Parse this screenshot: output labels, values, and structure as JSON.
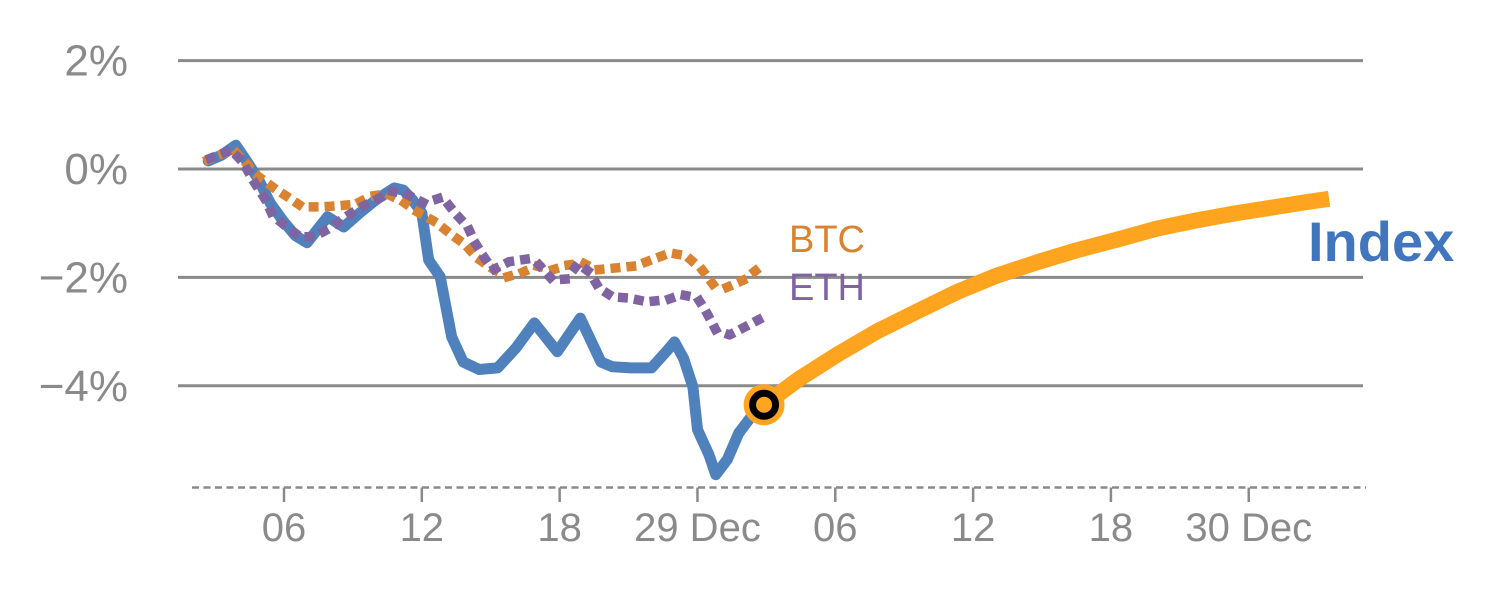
{
  "chart_data": {
    "type": "line",
    "title": "",
    "xlabel": "",
    "ylabel": "",
    "grid": "horizontal-solid",
    "background": "#FFFFFF",
    "axis_color": "#8A8A8A",
    "legend_position": "inline-labels",
    "ylim": [
      -6.2,
      2.6
    ],
    "y_unit": "%",
    "y_ticks": [
      {
        "value": 2,
        "label": "2%"
      },
      {
        "value": 0,
        "label": "0%"
      },
      {
        "value": -2,
        "label": "−2%"
      },
      {
        "value": -4,
        "label": "−4%"
      }
    ],
    "x_axis_style": "dashed",
    "x_ticks": [
      {
        "t": 6,
        "label": "06"
      },
      {
        "t": 12,
        "label": "12"
      },
      {
        "t": 18,
        "label": "18"
      },
      {
        "t": 24,
        "label": "29 Dec"
      },
      {
        "t": 30,
        "label": "06"
      },
      {
        "t": 36,
        "label": "12"
      },
      {
        "t": 42,
        "label": "18"
      },
      {
        "t": 48,
        "label": "30 Dec"
      }
    ],
    "series": [
      {
        "name": "Index (actual)",
        "style": "solid",
        "color": "#4F81BD",
        "width": 11,
        "points": [
          [
            2.7,
            0.15
          ],
          [
            3.3,
            0.26
          ],
          [
            3.9,
            0.44
          ],
          [
            4.4,
            0.13
          ],
          [
            4.9,
            -0.2
          ],
          [
            5.4,
            -0.63
          ],
          [
            6.0,
            -0.98
          ],
          [
            6.5,
            -1.23
          ],
          [
            7.0,
            -1.36
          ],
          [
            7.9,
            -0.88
          ],
          [
            8.6,
            -1.07
          ],
          [
            9.3,
            -0.81
          ],
          [
            10.0,
            -0.57
          ],
          [
            10.8,
            -0.35
          ],
          [
            11.2,
            -0.39
          ],
          [
            11.6,
            -0.57
          ],
          [
            12.0,
            -0.81
          ],
          [
            12.3,
            -1.68
          ],
          [
            12.8,
            -1.99
          ],
          [
            13.3,
            -3.1
          ],
          [
            13.8,
            -3.56
          ],
          [
            14.5,
            -3.7
          ],
          [
            15.3,
            -3.67
          ],
          [
            16.1,
            -3.3
          ],
          [
            16.9,
            -2.84
          ],
          [
            17.9,
            -3.37
          ],
          [
            18.9,
            -2.75
          ],
          [
            19.8,
            -3.56
          ],
          [
            20.3,
            -3.65
          ],
          [
            21.1,
            -3.67
          ],
          [
            22.0,
            -3.67
          ],
          [
            22.6,
            -3.39
          ],
          [
            23.0,
            -3.19
          ],
          [
            23.4,
            -3.5
          ],
          [
            23.8,
            -4.02
          ],
          [
            24.0,
            -4.81
          ],
          [
            24.5,
            -5.27
          ],
          [
            24.8,
            -5.64
          ],
          [
            25.3,
            -5.36
          ],
          [
            25.8,
            -4.87
          ],
          [
            26.3,
            -4.59
          ],
          [
            26.9,
            -4.35
          ]
        ]
      },
      {
        "name": "Index (projected)",
        "style": "solid-thick",
        "color": "#FFA41E",
        "width": 16,
        "points": [
          [
            26.9,
            -4.35
          ],
          [
            28.4,
            -3.88
          ],
          [
            30.1,
            -3.42
          ],
          [
            31.8,
            -3.0
          ],
          [
            33.6,
            -2.62
          ],
          [
            35.3,
            -2.27
          ],
          [
            37.0,
            -1.97
          ],
          [
            38.8,
            -1.72
          ],
          [
            40.5,
            -1.5
          ],
          [
            42.2,
            -1.31
          ],
          [
            44.0,
            -1.1
          ],
          [
            45.7,
            -0.95
          ],
          [
            47.4,
            -0.82
          ],
          [
            49.2,
            -0.7
          ],
          [
            50.5,
            -0.61
          ],
          [
            51.5,
            -0.55
          ]
        ]
      },
      {
        "name": "BTC",
        "style": "dotted",
        "color": "#D9822F",
        "width": 9.5,
        "points": [
          [
            2.7,
            0.17
          ],
          [
            3.2,
            0.26
          ],
          [
            3.8,
            0.35
          ],
          [
            4.3,
            0.13
          ],
          [
            4.8,
            -0.11
          ],
          [
            5.5,
            -0.33
          ],
          [
            6.1,
            -0.5
          ],
          [
            6.8,
            -0.7
          ],
          [
            7.6,
            -0.7
          ],
          [
            8.3,
            -0.68
          ],
          [
            9.1,
            -0.65
          ],
          [
            9.8,
            -0.5
          ],
          [
            10.5,
            -0.46
          ],
          [
            11.2,
            -0.61
          ],
          [
            11.8,
            -0.79
          ],
          [
            12.6,
            -0.98
          ],
          [
            13.2,
            -1.18
          ],
          [
            13.9,
            -1.4
          ],
          [
            14.4,
            -1.64
          ],
          [
            15.0,
            -1.82
          ],
          [
            15.7,
            -1.99
          ],
          [
            16.3,
            -1.92
          ],
          [
            17.0,
            -1.79
          ],
          [
            17.7,
            -1.86
          ],
          [
            18.4,
            -1.77
          ],
          [
            19.0,
            -1.73
          ],
          [
            19.6,
            -1.86
          ],
          [
            20.6,
            -1.82
          ],
          [
            21.3,
            -1.79
          ],
          [
            22.1,
            -1.66
          ],
          [
            22.8,
            -1.55
          ],
          [
            23.5,
            -1.6
          ],
          [
            24.2,
            -1.86
          ],
          [
            24.7,
            -2.14
          ],
          [
            25.3,
            -2.18
          ],
          [
            26.0,
            -2.05
          ],
          [
            26.7,
            -1.82
          ]
        ]
      },
      {
        "name": "ETH",
        "style": "dotted",
        "color": "#8064A2",
        "width": 9.5,
        "points": [
          [
            2.8,
            0.2
          ],
          [
            3.7,
            0.35
          ],
          [
            4.2,
            0.13
          ],
          [
            4.7,
            -0.24
          ],
          [
            5.2,
            -0.57
          ],
          [
            5.5,
            -0.85
          ],
          [
            6.0,
            -1.03
          ],
          [
            6.7,
            -1.25
          ],
          [
            7.3,
            -1.25
          ],
          [
            8.0,
            -1.09
          ],
          [
            8.7,
            -0.88
          ],
          [
            9.3,
            -0.72
          ],
          [
            10.0,
            -0.57
          ],
          [
            10.7,
            -0.41
          ],
          [
            11.4,
            -0.48
          ],
          [
            12.1,
            -0.63
          ],
          [
            12.9,
            -0.52
          ],
          [
            13.4,
            -0.79
          ],
          [
            14.0,
            -1.07
          ],
          [
            14.3,
            -1.35
          ],
          [
            14.7,
            -1.62
          ],
          [
            15.1,
            -1.86
          ],
          [
            15.8,
            -1.71
          ],
          [
            16.6,
            -1.66
          ],
          [
            17.1,
            -1.77
          ],
          [
            17.7,
            -2.05
          ],
          [
            18.3,
            -2.03
          ],
          [
            18.8,
            -1.75
          ],
          [
            19.3,
            -1.9
          ],
          [
            19.7,
            -2.19
          ],
          [
            20.3,
            -2.36
          ],
          [
            21.0,
            -2.38
          ],
          [
            21.8,
            -2.45
          ],
          [
            22.7,
            -2.41
          ],
          [
            23.3,
            -2.32
          ],
          [
            24.0,
            -2.38
          ],
          [
            24.4,
            -2.65
          ],
          [
            24.8,
            -2.97
          ],
          [
            25.4,
            -3.06
          ],
          [
            26.0,
            -2.93
          ],
          [
            26.8,
            -2.75
          ]
        ]
      }
    ],
    "marker": {
      "t": 26.9,
      "value": -4.35,
      "shape": "ring-circle",
      "fill": "#FFA41E",
      "ring": "#000000"
    },
    "annotations": {
      "btc": {
        "text": "BTC",
        "color": "#D9822F"
      },
      "eth": {
        "text": "ETH",
        "color": "#8064A2"
      },
      "index": {
        "text": "Index",
        "color": "#4176BE"
      }
    }
  }
}
